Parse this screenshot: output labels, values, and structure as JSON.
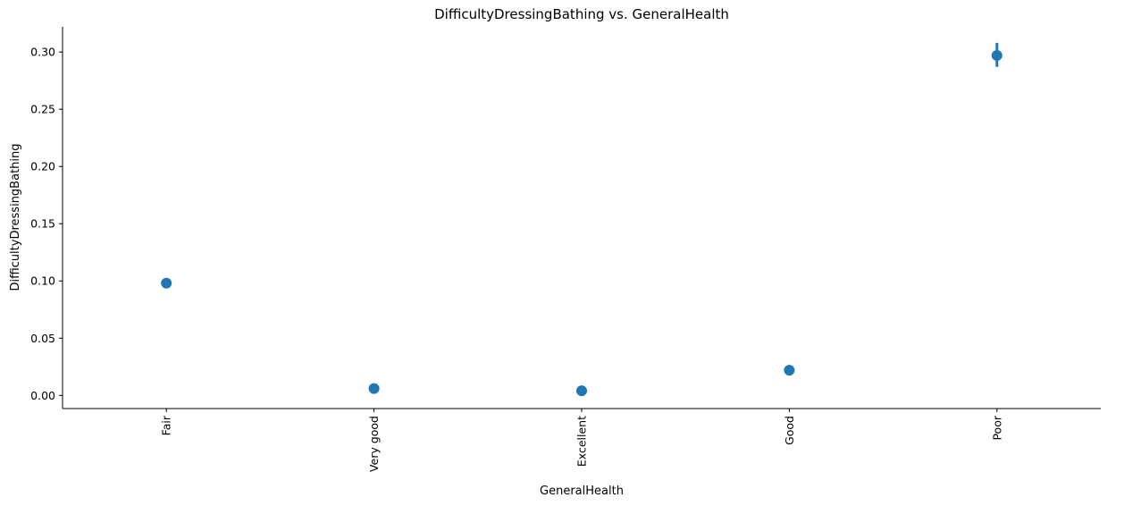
{
  "chart_data": {
    "type": "scatter",
    "title": "DifficultyDressingBathing vs. GeneralHealth",
    "xlabel": "GeneralHealth",
    "ylabel": "DifficultyDressingBathing",
    "categories": [
      "Fair",
      "Very good",
      "Excellent",
      "Good",
      "Poor"
    ],
    "values": [
      0.098,
      0.006,
      0.004,
      0.022,
      0.297
    ],
    "ci_low": [
      0.096,
      0.005,
      0.003,
      0.021,
      0.287
    ],
    "ci_high": [
      0.1,
      0.007,
      0.005,
      0.023,
      0.308
    ],
    "ylim": [
      -0.0115,
      0.322
    ],
    "yticks": [
      0.0,
      0.05,
      0.1,
      0.15,
      0.2,
      0.25,
      0.3
    ],
    "ytick_labels": [
      "0.00",
      "0.05",
      "0.10",
      "0.15",
      "0.20",
      "0.25",
      "0.30"
    ],
    "grid": false,
    "legend": "none",
    "point_color": "#1f77b4"
  }
}
